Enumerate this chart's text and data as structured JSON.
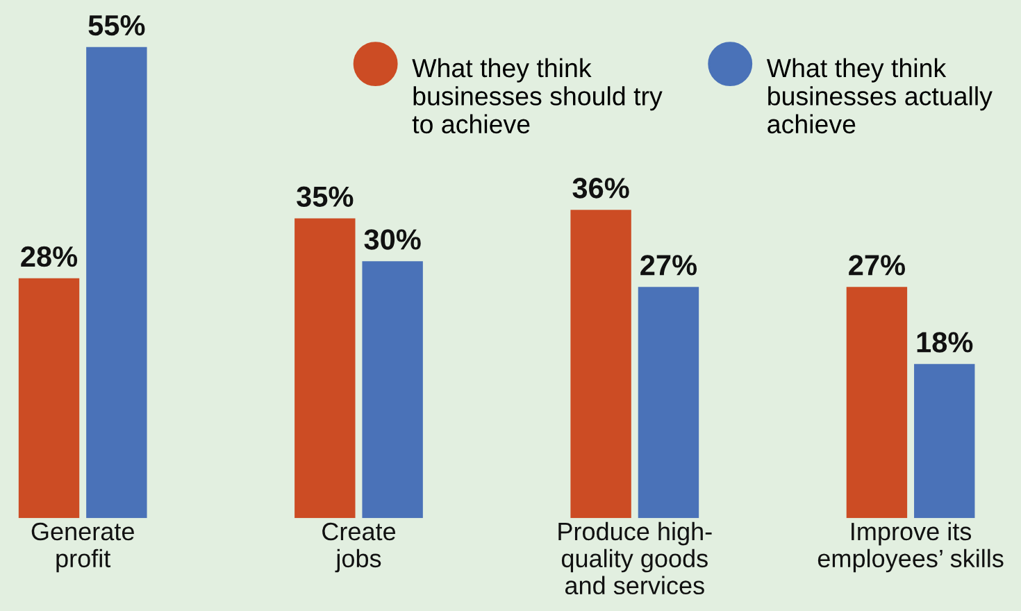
{
  "chart_data": {
    "type": "bar",
    "categories": [
      "Generate\nprofit",
      "Create\njobs",
      "Produce high-\nquality goods\nand services",
      "Improve its\nemployees’ skills"
    ],
    "series": [
      {
        "name": "What they think\nbusinesses should try\nto achieve",
        "color": "#cc4c24",
        "values": [
          28,
          35,
          36,
          27
        ],
        "value_labels": [
          "28%",
          "35%",
          "36%",
          "27%"
        ]
      },
      {
        "name": "What they think\nbusinesses actually\nachieve",
        "color": "#4a72b8",
        "values": [
          55,
          30,
          27,
          18
        ],
        "value_labels": [
          "55%",
          "30%",
          "27%",
          "18%"
        ]
      }
    ],
    "legend": "top right",
    "grid": false
  }
}
